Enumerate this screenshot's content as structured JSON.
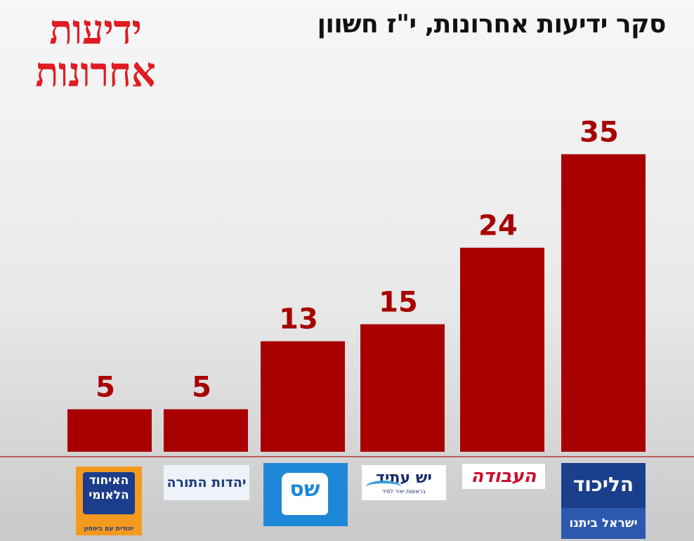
{
  "chart_data": {
    "type": "bar",
    "title": "סקר ידיעות אחרונות, י\"ז חשוון",
    "masthead": "ידיעות אחרונות",
    "categories": [
      "האיחוד הלאומי",
      "יהדות התורה",
      "ש\"ס",
      "יש עתיד",
      "העבודה",
      "הליכוד ישראל ביתנו"
    ],
    "values": [
      5,
      5,
      13,
      15,
      24,
      35
    ],
    "value_labels": [
      "5",
      "5",
      "13",
      "15",
      "24",
      "35"
    ],
    "ylim": [
      0,
      40
    ],
    "grid": false,
    "legend": "none",
    "colors": {
      "bar": "#a80000",
      "value_label": "#a80000",
      "masthead": "#e01b22",
      "baseline": "#b23a3a"
    }
  },
  "logos": {
    "likud": {
      "main": "הליכוד",
      "sub": "ישראל ביתנו",
      "icon": "likud-logo"
    },
    "labor": {
      "main": "העבודה",
      "icon": "labor-logo"
    },
    "yesh_atid": {
      "main": "יש עתיד",
      "sub": "בראשות יאיר לפיד",
      "icon": "yesh-atid-logo"
    },
    "shas": {
      "main": "שס",
      "icon": "shas-logo"
    },
    "utj": {
      "main": "יהדות התורה",
      "icon": "utj-logo"
    },
    "national_union": {
      "main": "האיחוד הלאומי",
      "sub": "יהודית עם ביטחון",
      "icon": "national-union-logo"
    }
  }
}
